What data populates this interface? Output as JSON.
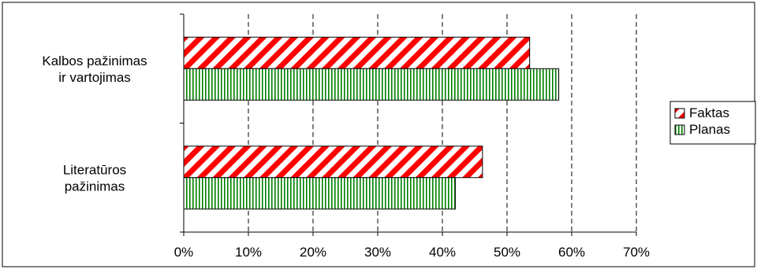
{
  "chart_data": {
    "type": "bar",
    "orientation": "horizontal",
    "categories": [
      [
        "Kalbos pažinimas",
        "ir vartojimas"
      ],
      [
        "Literatūros",
        "pažinimas"
      ]
    ],
    "series": [
      {
        "name": "Faktas",
        "values": [
          53.5,
          46.2
        ],
        "color": "#ff0000",
        "pattern": "diagonal-stripes"
      },
      {
        "name": "Planas",
        "values": [
          58.0,
          42.0
        ],
        "color": "#008000",
        "pattern": "vertical-stripes"
      }
    ],
    "xticks": [
      "0%",
      "10%",
      "20%",
      "30%",
      "40%",
      "50%",
      "60%",
      "70%"
    ],
    "xlim": [
      0,
      70
    ],
    "grid": "vertical-dashed",
    "legend_position": "right"
  }
}
